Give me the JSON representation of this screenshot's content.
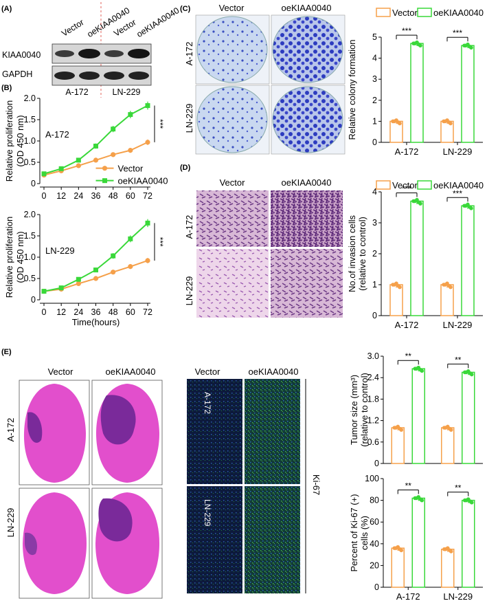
{
  "panels": {
    "A": "(A)",
    "B": "(B)",
    "C": "(C)",
    "D": "(D)",
    "E": "(E)"
  },
  "groups": {
    "vector": "Vector",
    "oe": "oeKIAA0040"
  },
  "cells": {
    "a172": "A-172",
    "ln229": "LN-229"
  },
  "blot": {
    "target": "KIAA0040",
    "loading": "GAPDH"
  },
  "stars": {
    "three": "***",
    "two": "**"
  },
  "colors": {
    "vector": "#F5A04A",
    "oe": "#39D839"
  },
  "chart_data": [
    {
      "type": "line",
      "name": "proliferation-A-172",
      "cell": "A-172",
      "ylabel1": "Relative proliferation",
      "ylabel2": "(OD 450 nm)",
      "x": [
        0,
        12,
        24,
        36,
        48,
        60,
        72
      ],
      "ylim": [
        0,
        2.0
      ],
      "yticks": [
        "0",
        "0.5",
        "1.0",
        "1.5",
        "2.0"
      ],
      "xticks": [
        "0",
        "12",
        "24",
        "36",
        "48",
        "60",
        "72"
      ],
      "series": [
        {
          "name": "Vector",
          "values": [
            0.2,
            0.3,
            0.42,
            0.55,
            0.68,
            0.78,
            0.97
          ]
        },
        {
          "name": "oeKIAA0040",
          "values": [
            0.23,
            0.35,
            0.55,
            0.88,
            1.28,
            1.62,
            1.83
          ]
        }
      ],
      "sig": "***",
      "legend": "bottom-right"
    },
    {
      "type": "line",
      "name": "proliferation-LN-229",
      "cell": "LN-229",
      "ylabel1": "Relative proliferation",
      "ylabel2": "(OD 450 nm)",
      "x": [
        0,
        12,
        24,
        36,
        48,
        60,
        72
      ],
      "ylim": [
        0,
        2.0
      ],
      "yticks": [
        "0",
        "0.5",
        "1.0",
        "1.5",
        "2.0"
      ],
      "xticks": [
        "0",
        "12",
        "24",
        "36",
        "48",
        "60",
        "72"
      ],
      "xlabel": "Time(hours)",
      "series": [
        {
          "name": "Vector",
          "values": [
            0.2,
            0.25,
            0.38,
            0.5,
            0.65,
            0.78,
            0.92
          ]
        },
        {
          "name": "oeKIAA0040",
          "values": [
            0.2,
            0.28,
            0.48,
            0.7,
            1.03,
            1.43,
            1.8
          ]
        }
      ],
      "sig": "***"
    },
    {
      "type": "bar",
      "name": "colony-formation",
      "ylabel1": "Relative colony formation",
      "ylabel2": "",
      "categories": [
        "A-172",
        "LN-229"
      ],
      "ylim": [
        0,
        5
      ],
      "yticks": [
        "0",
        "1",
        "2",
        "3",
        "4",
        "5"
      ],
      "series": [
        {
          "name": "Vector",
          "values": [
            1.0,
            1.0
          ]
        },
        {
          "name": "oeKIAA0040",
          "values": [
            4.7,
            4.6
          ]
        }
      ],
      "sig": [
        "***",
        "***"
      ],
      "legend": "top"
    },
    {
      "type": "bar",
      "name": "invasion",
      "ylabel1": "No.of invasion cells",
      "ylabel2": "(relative to control)",
      "categories": [
        "A-172",
        "LN-229"
      ],
      "ylim": [
        0,
        4
      ],
      "yticks": [
        "0",
        "1",
        "2",
        "3",
        "4"
      ],
      "series": [
        {
          "name": "Vector",
          "values": [
            1.0,
            1.0
          ]
        },
        {
          "name": "oeKIAA0040",
          "values": [
            3.7,
            3.55
          ]
        }
      ],
      "sig": [
        "***",
        "***"
      ],
      "legend": "top"
    },
    {
      "type": "bar",
      "name": "tumor-size",
      "ylabel1": "Tumor size (mm³)",
      "ylabel2": "(relative to control)",
      "categories": [
        "A-172",
        "LN-229"
      ],
      "ylim": [
        0,
        3.0
      ],
      "yticks": [
        "0",
        "0.6",
        "1.2",
        "1.8",
        "2.4",
        "3.0"
      ],
      "series": [
        {
          "name": "Vector",
          "values": [
            1.0,
            1.0
          ]
        },
        {
          "name": "oeKIAA0040",
          "values": [
            2.65,
            2.55
          ]
        }
      ],
      "sig": [
        "**",
        "**"
      ]
    },
    {
      "type": "bar",
      "name": "ki67",
      "ylabel1": "Percent of Ki-67 (+)",
      "ylabel2": "cells (%)",
      "categories": [
        "A-172",
        "LN-229"
      ],
      "ylim": [
        0,
        100
      ],
      "yticks": [
        "0",
        "20",
        "40",
        "60",
        "80",
        "100"
      ],
      "series": [
        {
          "name": "Vector",
          "values": [
            36,
            35
          ]
        },
        {
          "name": "oeKIAA0040",
          "values": [
            82,
            80
          ]
        }
      ],
      "sig": [
        "**",
        "**"
      ]
    }
  ],
  "ki67_label": "Ki-67"
}
